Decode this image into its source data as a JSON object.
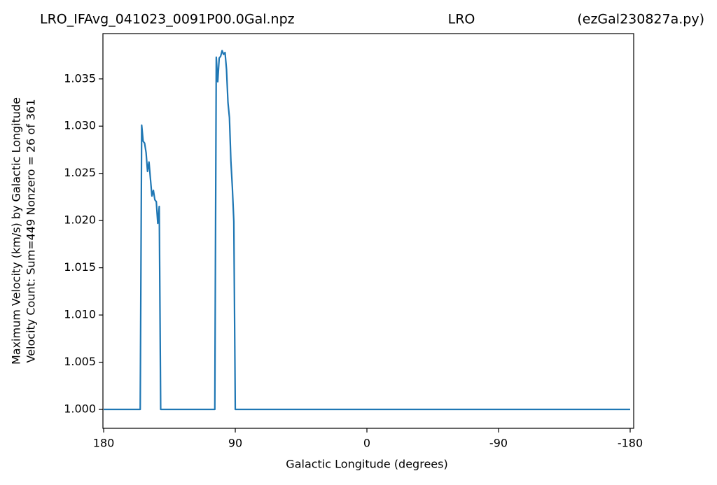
{
  "chart_data": {
    "type": "line",
    "titles": [
      "LRO_IFAvg_041023_0091P00.0Gal.npz",
      "LRO",
      "(ezGal230827a.py)"
    ],
    "xlabel": "Galactic Longitude (degrees)",
    "ylabel": [
      "Maximum Velocity (km/s) by Galactic Longitude",
      "Velocity Count: Sum=449 Nonzero = 26 of 361"
    ],
    "x": [
      180,
      155,
      154,
      153,
      152,
      151,
      150,
      149,
      148,
      147,
      146,
      145,
      144,
      143,
      142,
      141,
      104,
      103,
      102,
      101,
      100,
      99,
      98,
      97,
      96,
      95,
      94,
      93,
      92,
      91,
      90,
      -180
    ],
    "series": [
      {
        "color": "#1f77b4",
        "values": [
          1.0,
          1.0,
          1.0301,
          1.0284,
          1.0282,
          1.0272,
          1.0252,
          1.0262,
          1.0244,
          1.0226,
          1.0232,
          1.0222,
          1.022,
          1.0197,
          1.0215,
          1.0,
          1.0,
          1.0373,
          1.0347,
          1.0372,
          1.0374,
          1.038,
          1.0376,
          1.0378,
          1.036,
          1.0325,
          1.0309,
          1.0263,
          1.0235,
          1.0199,
          1.0,
          1.0
        ]
      }
    ],
    "xlim": [
      180.5,
      -182.4
    ],
    "ylim": [
      0.998,
      1.0398
    ],
    "xticks": [
      180,
      90,
      0,
      -90,
      -180
    ],
    "yticks": [
      {
        "value": 1.0,
        "label": "1.000"
      },
      {
        "value": 1.005,
        "label": "1.005"
      },
      {
        "value": 1.01,
        "label": "1.010"
      },
      {
        "value": 1.015,
        "label": "1.015"
      },
      {
        "value": 1.02,
        "label": "1.020"
      },
      {
        "value": 1.025,
        "label": "1.025"
      },
      {
        "value": 1.03,
        "label": "1.030"
      },
      {
        "value": 1.035,
        "label": "1.035"
      }
    ],
    "grid": false
  }
}
